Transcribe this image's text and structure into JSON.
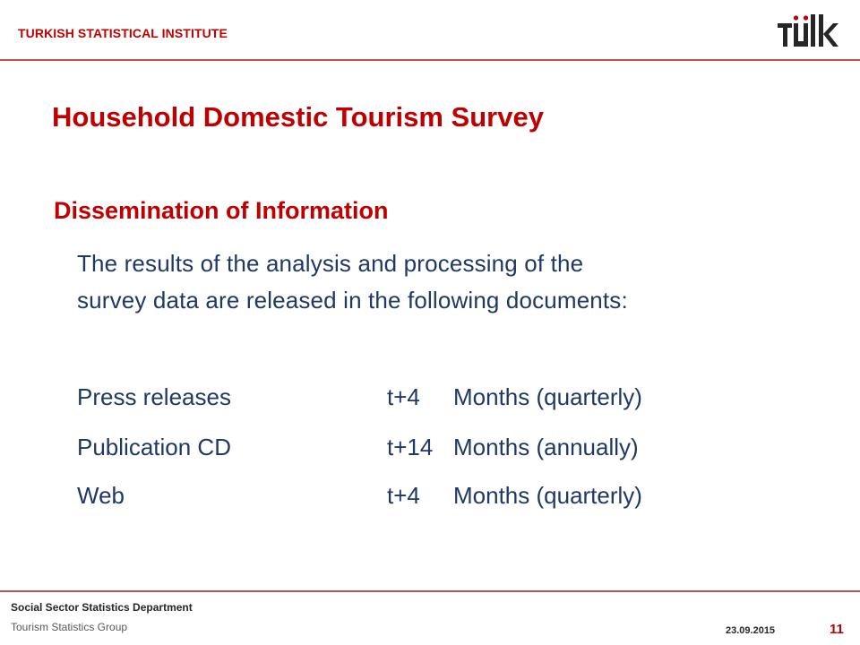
{
  "header": {
    "institute": "TURKISH STATISTICAL INSTITUTE",
    "logo_icon": "tuik-logo-icon",
    "accent_color": "#c00000"
  },
  "slide": {
    "title": "Household Domestic Tourism Survey",
    "subtitle": "Dissemination of Information",
    "body_lines": [
      "The results of the analysis and processing of the",
      "survey data are released in the following documents:"
    ],
    "documents": [
      {
        "name": "Press releases",
        "lag": "t+4",
        "frequency": "Months (quarterly)"
      },
      {
        "name": "Publication CD",
        "lag": "t+14",
        "frequency": "Months (annually)"
      },
      {
        "name": "Web",
        "lag": "t+4",
        "frequency": "Months (quarterly)"
      }
    ]
  },
  "footer": {
    "department": "Social  Sector Statistics Department",
    "group": "Tourism Statistics Group",
    "date": "23.09.2015",
    "page_number": "11"
  }
}
